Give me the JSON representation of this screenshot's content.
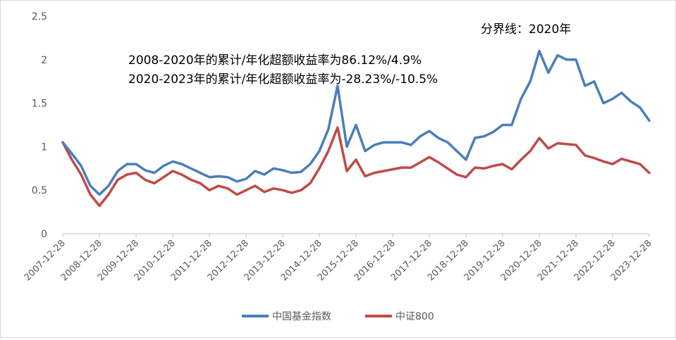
{
  "chart_data": {
    "type": "line",
    "title": "",
    "xlabel": "",
    "ylabel": "",
    "ylim": [
      0,
      2.5
    ],
    "yticks": [
      "0",
      "0.5",
      "1",
      "1.5",
      "2",
      "2.5"
    ],
    "xtick_labels": [
      "2007-12-28",
      "2008-12-28",
      "2009-12-28",
      "2010-12-28",
      "2011-12-28",
      "2012-12-28",
      "2013-12-28",
      "2014-12-28",
      "2015-12-28",
      "2016-12-28",
      "2017-12-28",
      "2018-12-28",
      "2019-12-28",
      "2020-12-28",
      "2021-12-28",
      "2022-12-28",
      "2023-12-28"
    ],
    "x": [
      "2007-12-28",
      "2008-03-28",
      "2008-06-28",
      "2008-09-28",
      "2008-12-28",
      "2009-03-28",
      "2009-06-28",
      "2009-09-28",
      "2009-12-28",
      "2010-03-28",
      "2010-06-28",
      "2010-09-28",
      "2010-12-28",
      "2011-03-28",
      "2011-06-28",
      "2011-09-28",
      "2011-12-28",
      "2012-03-28",
      "2012-06-28",
      "2012-09-28",
      "2012-12-28",
      "2013-03-28",
      "2013-06-28",
      "2013-09-28",
      "2013-12-28",
      "2014-03-28",
      "2014-06-28",
      "2014-09-28",
      "2014-12-28",
      "2015-03-28",
      "2015-06-28",
      "2015-09-28",
      "2015-12-28",
      "2016-03-28",
      "2016-06-28",
      "2016-09-28",
      "2016-12-28",
      "2017-03-28",
      "2017-06-28",
      "2017-09-28",
      "2017-12-28",
      "2018-03-28",
      "2018-06-28",
      "2018-09-28",
      "2018-12-28",
      "2019-03-28",
      "2019-06-28",
      "2019-09-28",
      "2019-12-28",
      "2020-03-28",
      "2020-06-28",
      "2020-09-28",
      "2020-12-28",
      "2021-03-28",
      "2021-06-28",
      "2021-09-28",
      "2021-12-28",
      "2022-03-28",
      "2022-06-28",
      "2022-09-28",
      "2022-12-28",
      "2023-03-28",
      "2023-06-28",
      "2023-09-28",
      "2023-12-28"
    ],
    "series": [
      {
        "name": "中国基金指数",
        "color": "#4a7ebb",
        "values": [
          1.05,
          0.92,
          0.78,
          0.55,
          0.45,
          0.55,
          0.72,
          0.8,
          0.8,
          0.73,
          0.7,
          0.78,
          0.83,
          0.8,
          0.75,
          0.7,
          0.65,
          0.66,
          0.65,
          0.6,
          0.63,
          0.72,
          0.68,
          0.75,
          0.73,
          0.7,
          0.71,
          0.8,
          0.95,
          1.2,
          1.7,
          1.0,
          1.25,
          0.95,
          1.02,
          1.05,
          1.05,
          1.05,
          1.02,
          1.12,
          1.18,
          1.1,
          1.05,
          0.95,
          0.85,
          1.1,
          1.12,
          1.17,
          1.25,
          1.25,
          1.55,
          1.75,
          2.1,
          1.85,
          2.05,
          2.0,
          2.0,
          1.7,
          1.75,
          1.5,
          1.55,
          1.62,
          1.52,
          1.45,
          1.3
        ]
      },
      {
        "name": "中证800",
        "color": "#be4b48",
        "values": [
          1.05,
          0.85,
          0.68,
          0.45,
          0.32,
          0.45,
          0.62,
          0.68,
          0.7,
          0.62,
          0.58,
          0.65,
          0.72,
          0.68,
          0.62,
          0.58,
          0.5,
          0.55,
          0.52,
          0.45,
          0.5,
          0.55,
          0.48,
          0.52,
          0.5,
          0.47,
          0.5,
          0.58,
          0.75,
          0.95,
          1.22,
          0.72,
          0.85,
          0.66,
          0.7,
          0.72,
          0.74,
          0.76,
          0.76,
          0.82,
          0.88,
          0.82,
          0.75,
          0.68,
          0.65,
          0.76,
          0.75,
          0.78,
          0.8,
          0.74,
          0.85,
          0.95,
          1.1,
          0.98,
          1.04,
          1.03,
          1.02,
          0.9,
          0.87,
          0.83,
          0.8,
          0.86,
          0.83,
          0.8,
          0.7
        ]
      }
    ],
    "annotations": [
      "分界线：2020年",
      "2008-2020年的累计/年化超额收益率为86.12%/4.9%",
      "2020-2023年的累计/年化超额收益率为-28.23%/-10.5%"
    ],
    "legend_position": "bottom",
    "grid": false
  }
}
